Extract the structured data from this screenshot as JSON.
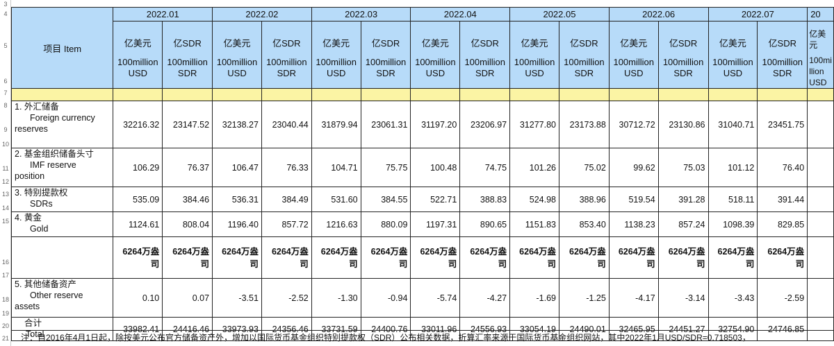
{
  "row_numbers": [
    "3",
    "4",
    "5",
    "6",
    "7",
    "8",
    "9",
    "10",
    "11",
    "12",
    "13",
    "14",
    "15",
    "16",
    "17",
    "18",
    "19",
    "20",
    "21"
  ],
  "item_header": "项目  Item",
  "months": [
    "2022.01",
    "2022.02",
    "2022.03",
    "2022.04",
    "2022.05",
    "2022.06",
    "2022.07",
    "20"
  ],
  "col_headers": {
    "usd_zh": "亿美元",
    "sdr_zh": "亿SDR",
    "usd_en1": "100million",
    "usd_en2": "USD",
    "sdr_en1": "100million",
    "sdr_en2": "SDR",
    "partial_zh": "亿美元",
    "partial_en": "100mi llion USD"
  },
  "rows": [
    {
      "zh": "1. 外汇储备",
      "en1": "Foreign currency",
      "en2": "reserves",
      "values": [
        "32216.32",
        "23147.52",
        "32138.27",
        "23040.44",
        "31879.94",
        "23061.31",
        "31197.20",
        "23206.97",
        "31277.80",
        "23173.88",
        "30712.72",
        "23130.86",
        "31040.71",
        "23451.75",
        ""
      ]
    },
    {
      "zh": "2. 基金组织储备头寸",
      "en1": "IMF reserve",
      "en2": "position",
      "values": [
        "106.29",
        "76.37",
        "106.47",
        "76.33",
        "104.71",
        "75.75",
        "100.48",
        "74.75",
        "101.26",
        "75.02",
        "99.62",
        "75.03",
        "101.12",
        "76.40",
        ""
      ]
    },
    {
      "zh": "3. 特别提款权",
      "en1": "SDRs",
      "en2": "",
      "values": [
        "535.09",
        "384.46",
        "536.31",
        "384.49",
        "531.60",
        "384.55",
        "522.71",
        "388.83",
        "524.98",
        "388.96",
        "519.54",
        "391.28",
        "518.11",
        "391.44",
        ""
      ]
    },
    {
      "zh": "4. 黄金",
      "en1": "Gold",
      "en2": "",
      "values": [
        "1124.61",
        "808.04",
        "1196.40",
        "857.72",
        "1216.63",
        "880.09",
        "1197.31",
        "890.65",
        "1151.83",
        "853.40",
        "1138.23",
        "857.24",
        "1098.39",
        "829.85",
        ""
      ]
    }
  ],
  "gold_ounce": {
    "line1": "6264万盎",
    "line2": "司",
    "count": 14
  },
  "other_assets": {
    "zh": "5. 其他储备资产",
    "en1": "Other reserve",
    "en2": "assets",
    "values": [
      "0.10",
      "0.07",
      "-3.51",
      "-2.52",
      "-1.30",
      "-0.94",
      "-5.74",
      "-4.27",
      "-1.69",
      "-1.25",
      "-4.17",
      "-3.14",
      "-3.43",
      "-2.59",
      ""
    ]
  },
  "total": {
    "zh": "合计",
    "en": "Total",
    "values": [
      "33982.41",
      "24416.46",
      "33973.93",
      "24356.46",
      "33731.59",
      "24400.76",
      "33011.96",
      "24556.93",
      "33054.19",
      "24490.01",
      "32465.95",
      "24451.27",
      "32754.90",
      "24746.85",
      ""
    ]
  },
  "note": "注：自2016年4月1日起，除按美元公布官方储备资产外，增加以国际货币基金组织特别提款权（SDR）公布相关数据，折算汇率来源于国际货币基金组织网站，其中2022年1月USD/SDR=0.718503，"
}
